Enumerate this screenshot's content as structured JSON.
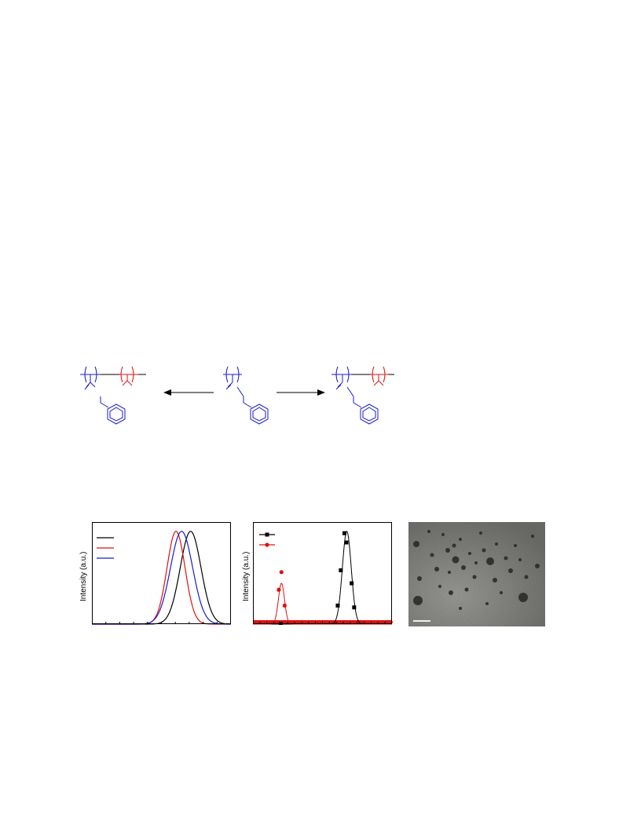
{
  "figure": {
    "colors": {
      "block_a": "#1a1ad0",
      "block_b": "#e01010",
      "black": "#000000"
    },
    "scheme": {
      "left_label": "",
      "center_label": "",
      "right_label": ""
    },
    "panel_gpc": {
      "ylabel": "Intensity (a.u.)",
      "legend_entries": [
        {
          "color": "#000000"
        },
        {
          "color": "#e01010"
        },
        {
          "color": "#1a1ad0"
        }
      ]
    },
    "panel_dls": {
      "ylabel": "Intensity (a.u.)",
      "legend_entries": [
        {
          "color": "#000000",
          "marker": "square"
        },
        {
          "color": "#e01010",
          "marker": "circle"
        }
      ]
    },
    "panel_tem": {
      "scale_bar_label": "",
      "background": "#8a8a86"
    }
  },
  "chart_data": [
    {
      "type": "line",
      "ylabel": "Intensity (a.u.)",
      "xlim": [
        0,
        1
      ],
      "ylim": [
        0,
        1.1
      ],
      "series": [
        {
          "color": "#000000",
          "center": 0.71,
          "width": 0.075,
          "peak": 1.0
        },
        {
          "color": "#e01010",
          "center": 0.605,
          "width": 0.065,
          "peak": 1.0
        },
        {
          "color": "#1a1ad0",
          "center": 0.645,
          "width": 0.08,
          "peak": 1.0
        }
      ]
    },
    {
      "type": "scatter",
      "ylabel": "Intensity (a.u.)",
      "xlim": [
        0,
        1
      ],
      "ylim": [
        0,
        1.1
      ],
      "series": [
        {
          "color": "#000000",
          "marker": "square",
          "fit": {
            "center": 0.675,
            "width": 0.032,
            "peak": 1.0
          },
          "points": [
            [
              0.2,
              0.0
            ],
            [
              0.61,
              0.2
            ],
            [
              0.632,
              0.58
            ],
            [
              0.658,
              0.98
            ],
            [
              0.672,
              0.88
            ],
            [
              0.71,
              0.44
            ],
            [
              0.728,
              0.18
            ]
          ]
        },
        {
          "color": "#e01010",
          "marker": "circle",
          "fit": {
            "center": 0.205,
            "width": 0.022,
            "peak": 0.44
          },
          "points": [
            [
              0.186,
              0.37
            ],
            [
              0.205,
              0.56
            ],
            [
              0.228,
              0.2
            ]
          ]
        }
      ]
    }
  ]
}
